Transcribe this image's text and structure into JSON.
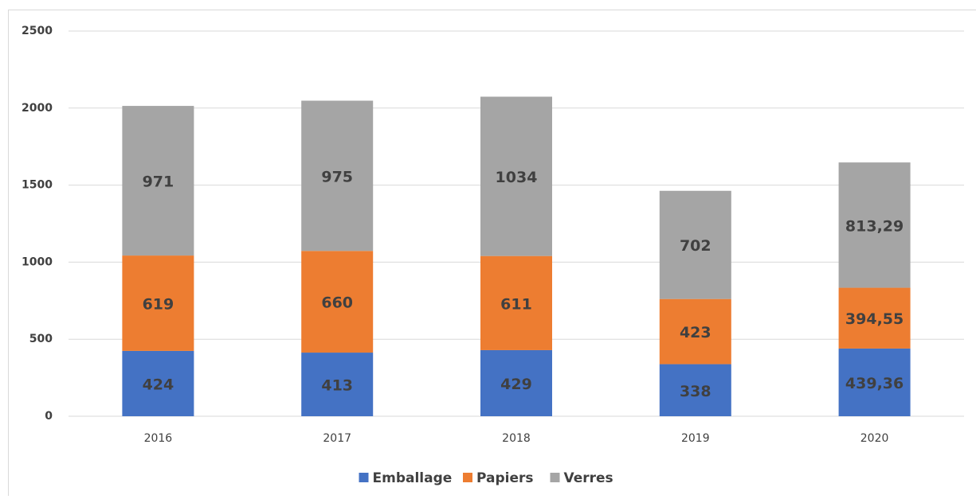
{
  "chart_data": {
    "type": "stacked_bar",
    "categories": [
      "2016",
      "2017",
      "2018",
      "2019",
      "2020"
    ],
    "series": [
      {
        "name": "Emballage",
        "color": "#4472c4",
        "values": [
          424,
          413,
          429,
          338,
          439.36
        ],
        "value_labels": [
          "424",
          "413",
          "429",
          "338",
          "439,36"
        ]
      },
      {
        "name": "Papiers",
        "color": "#ed7d31",
        "values": [
          619,
          660,
          611,
          423,
          394.55
        ],
        "value_labels": [
          "619",
          "660",
          "611",
          "423",
          "394,55"
        ]
      },
      {
        "name": "Verres",
        "color": "#a5a5a5",
        "values": [
          971,
          975,
          1034,
          702,
          813.29
        ],
        "value_labels": [
          "971",
          "975",
          "1034",
          "702",
          "813,29"
        ]
      }
    ],
    "ylim": [
      0,
      2500
    ],
    "yticks": [
      0,
      500,
      1000,
      1500,
      2000,
      2500
    ],
    "grid": true,
    "legend": "bottom"
  }
}
